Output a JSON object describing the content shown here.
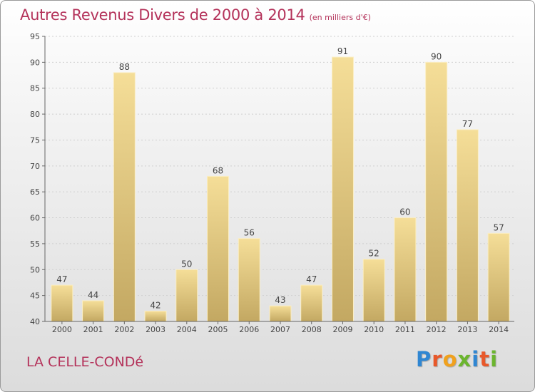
{
  "chart_data": {
    "type": "bar",
    "title": "Autres Revenus Divers de 2000 à 2014",
    "subtitle": "(en milliers d'€)",
    "categories": [
      "2000",
      "2001",
      "2002",
      "2003",
      "2004",
      "2005",
      "2006",
      "2007",
      "2008",
      "2009",
      "2010",
      "2011",
      "2012",
      "2013",
      "2014"
    ],
    "values": [
      47,
      44,
      88,
      42,
      50,
      68,
      56,
      43,
      47,
      91,
      52,
      60,
      90,
      77,
      57
    ],
    "ylim": [
      40,
      95
    ],
    "yticks": [
      40,
      45,
      50,
      55,
      60,
      65,
      70,
      75,
      80,
      85,
      90,
      95
    ],
    "grid": true,
    "bar_color": "#e8cc82"
  },
  "footer": {
    "location": "LA CELLE-CONDé"
  },
  "logo": {
    "letters": [
      {
        "char": "P",
        "color": "#2f86d2"
      },
      {
        "char": "r",
        "color": "#e8582a"
      },
      {
        "char": "o",
        "color": "#f0a11e"
      },
      {
        "char": "x",
        "color": "#6bb52e"
      },
      {
        "char": "i",
        "color": "#2f86d2"
      },
      {
        "char": "t",
        "color": "#e8582a"
      },
      {
        "char": "i",
        "color": "#6bb52e"
      }
    ]
  }
}
